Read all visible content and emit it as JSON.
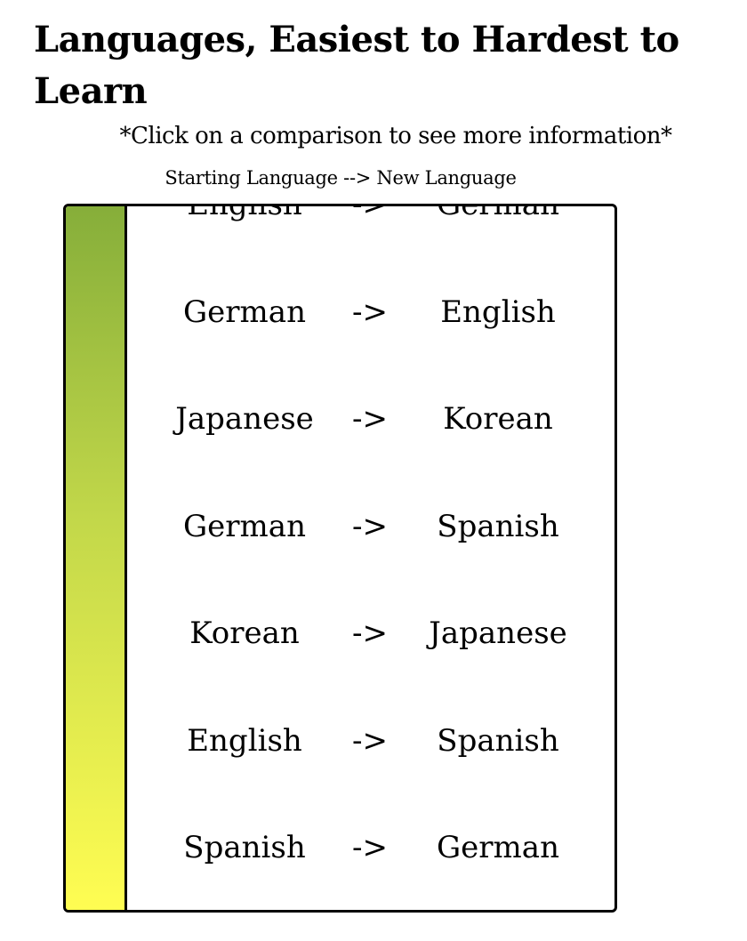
{
  "header": {
    "title": "Languages, Easiest to Hardest to Learn",
    "subtitle": "*Click on a comparison to see more information*",
    "column_hint": "Starting Language --> New Language"
  },
  "list": {
    "rows": [
      {
        "from": "English",
        "arrow": "->",
        "to": "German"
      },
      {
        "from": "German",
        "arrow": "->",
        "to": "English"
      },
      {
        "from": "Japanese",
        "arrow": "->",
        "to": "Korean"
      },
      {
        "from": "German",
        "arrow": "->",
        "to": "Spanish"
      },
      {
        "from": "Korean",
        "arrow": "->",
        "to": "Japanese"
      },
      {
        "from": "English",
        "arrow": "->",
        "to": "Spanish"
      },
      {
        "from": "Spanish",
        "arrow": "->",
        "to": "German"
      }
    ]
  }
}
